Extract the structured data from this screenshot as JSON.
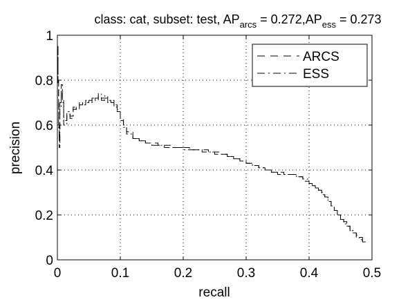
{
  "chart_data": {
    "type": "line",
    "title": {
      "prefix": "class: cat, subset: test, AP",
      "sub1": "arcs",
      "mid": " = 0.272,AP",
      "sub2": "ess",
      "suffix": " = 0.273"
    },
    "xlabel": "recall",
    "ylabel": "precision",
    "xlim": [
      0,
      0.5
    ],
    "ylim": [
      0,
      1
    ],
    "xticks": [
      0,
      0.1,
      0.2,
      0.3,
      0.4,
      0.5
    ],
    "xtick_labels": [
      "0",
      "0.1",
      "0.2",
      "0.3",
      "0.4",
      "0.5"
    ],
    "yticks": [
      0,
      0.2,
      0.4,
      0.6,
      0.8,
      1
    ],
    "ytick_labels": [
      "0",
      "0.2",
      "0.4",
      "0.6",
      "0.8",
      "1"
    ],
    "grid": true,
    "legend_position": "top-right",
    "series": [
      {
        "name": "ARCS",
        "style": "dashed",
        "color": "#000000",
        "x": [
          0.0,
          0.001,
          0.002,
          0.003,
          0.004,
          0.006,
          0.008,
          0.01,
          0.015,
          0.02,
          0.025,
          0.03,
          0.035,
          0.04,
          0.045,
          0.05,
          0.055,
          0.06,
          0.065,
          0.07,
          0.075,
          0.08,
          0.085,
          0.09,
          0.095,
          0.1,
          0.105,
          0.11,
          0.12,
          0.13,
          0.14,
          0.15,
          0.16,
          0.17,
          0.18,
          0.19,
          0.2,
          0.21,
          0.22,
          0.23,
          0.24,
          0.25,
          0.26,
          0.27,
          0.28,
          0.29,
          0.3,
          0.31,
          0.32,
          0.33,
          0.34,
          0.35,
          0.36,
          0.37,
          0.38,
          0.39,
          0.4,
          0.405,
          0.41,
          0.415,
          0.42,
          0.425,
          0.43,
          0.435,
          0.44,
          0.445,
          0.45,
          0.455,
          0.46,
          0.465,
          0.47,
          0.475,
          0.48,
          0.485,
          0.49
        ],
        "y": [
          1.0,
          0.95,
          0.8,
          0.6,
          0.5,
          0.7,
          0.76,
          0.72,
          0.62,
          0.65,
          0.64,
          0.67,
          0.68,
          0.69,
          0.7,
          0.7,
          0.71,
          0.71,
          0.72,
          0.73,
          0.72,
          0.72,
          0.71,
          0.7,
          0.69,
          0.67,
          0.63,
          0.6,
          0.57,
          0.54,
          0.53,
          0.52,
          0.52,
          0.51,
          0.51,
          0.5,
          0.5,
          0.5,
          0.49,
          0.49,
          0.49,
          0.48,
          0.48,
          0.47,
          0.46,
          0.45,
          0.44,
          0.43,
          0.42,
          0.41,
          0.4,
          0.39,
          0.39,
          0.38,
          0.38,
          0.37,
          0.35,
          0.34,
          0.33,
          0.32,
          0.31,
          0.3,
          0.28,
          0.26,
          0.24,
          0.22,
          0.2,
          0.18,
          0.17,
          0.15,
          0.13,
          0.12,
          0.11,
          0.1,
          0.08
        ]
      },
      {
        "name": "ESS",
        "style": "dashdot",
        "color": "#000000",
        "x": [
          0.0,
          0.001,
          0.002,
          0.003,
          0.004,
          0.006,
          0.008,
          0.01,
          0.015,
          0.02,
          0.025,
          0.03,
          0.035,
          0.04,
          0.045,
          0.05,
          0.055,
          0.06,
          0.065,
          0.07,
          0.075,
          0.08,
          0.085,
          0.09,
          0.095,
          0.1,
          0.105,
          0.11,
          0.12,
          0.13,
          0.14,
          0.15,
          0.16,
          0.17,
          0.18,
          0.19,
          0.2,
          0.21,
          0.22,
          0.23,
          0.24,
          0.25,
          0.26,
          0.27,
          0.28,
          0.29,
          0.3,
          0.31,
          0.32,
          0.33,
          0.34,
          0.35,
          0.36,
          0.37,
          0.38,
          0.39,
          0.4,
          0.405,
          0.41,
          0.415,
          0.42,
          0.425,
          0.43,
          0.435,
          0.44,
          0.445,
          0.45,
          0.455,
          0.46,
          0.465,
          0.47,
          0.475,
          0.48,
          0.485,
          0.49
        ],
        "y": [
          1.0,
          0.93,
          0.78,
          0.58,
          0.52,
          0.68,
          0.78,
          0.7,
          0.6,
          0.66,
          0.63,
          0.68,
          0.67,
          0.7,
          0.69,
          0.71,
          0.7,
          0.72,
          0.71,
          0.74,
          0.71,
          0.73,
          0.7,
          0.71,
          0.68,
          0.66,
          0.62,
          0.59,
          0.56,
          0.54,
          0.53,
          0.52,
          0.51,
          0.51,
          0.5,
          0.5,
          0.5,
          0.49,
          0.49,
          0.49,
          0.48,
          0.48,
          0.47,
          0.47,
          0.46,
          0.45,
          0.44,
          0.43,
          0.42,
          0.41,
          0.4,
          0.39,
          0.38,
          0.38,
          0.38,
          0.37,
          0.36,
          0.34,
          0.33,
          0.32,
          0.31,
          0.29,
          0.28,
          0.26,
          0.24,
          0.22,
          0.2,
          0.18,
          0.16,
          0.15,
          0.13,
          0.12,
          0.1,
          0.09,
          0.08
        ]
      }
    ]
  }
}
